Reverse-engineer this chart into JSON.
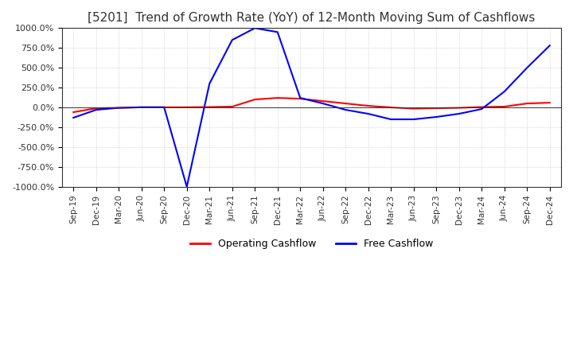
{
  "title": "[5201]  Trend of Growth Rate (YoY) of 12-Month Moving Sum of Cashflows",
  "title_fontsize": 11,
  "title_color": "#333333",
  "ylim": [
    -1000,
    1000
  ],
  "yticks": [
    -1000,
    -750,
    -500,
    -250,
    0,
    250,
    500,
    750,
    1000
  ],
  "yticklabels": [
    "-1000.0%",
    "-750.0%",
    "-500.0%",
    "-250.0%",
    "0.0%",
    "250.0%",
    "500.0%",
    "750.0%",
    "1000.0%"
  ],
  "xtick_labels": [
    "Sep-19",
    "Dec-19",
    "Mar-20",
    "Jun-20",
    "Sep-20",
    "Dec-20",
    "Mar-21",
    "Jun-21",
    "Sep-21",
    "Dec-21",
    "Mar-22",
    "Jun-22",
    "Sep-22",
    "Dec-22",
    "Mar-23",
    "Jun-23",
    "Sep-23",
    "Dec-23",
    "Mar-24",
    "Jun-24",
    "Sep-24",
    "Dec-24"
  ],
  "operating_color": "#FF0000",
  "free_color": "#0000FF",
  "background_color": "#FFFFFF",
  "grid_color": "#BBBBBB",
  "operating_cashflow": [
    -60,
    -10,
    -5,
    2,
    2,
    2,
    5,
    10,
    100,
    120,
    110,
    80,
    50,
    20,
    0,
    -15,
    -10,
    -5,
    5,
    10,
    50,
    60
  ],
  "free_cashflow": [
    -130,
    -30,
    -5,
    2,
    2,
    -1000,
    300,
    850,
    1000,
    950,
    120,
    50,
    -30,
    -80,
    -150,
    -150,
    -120,
    -80,
    -20,
    200,
    500,
    780
  ]
}
